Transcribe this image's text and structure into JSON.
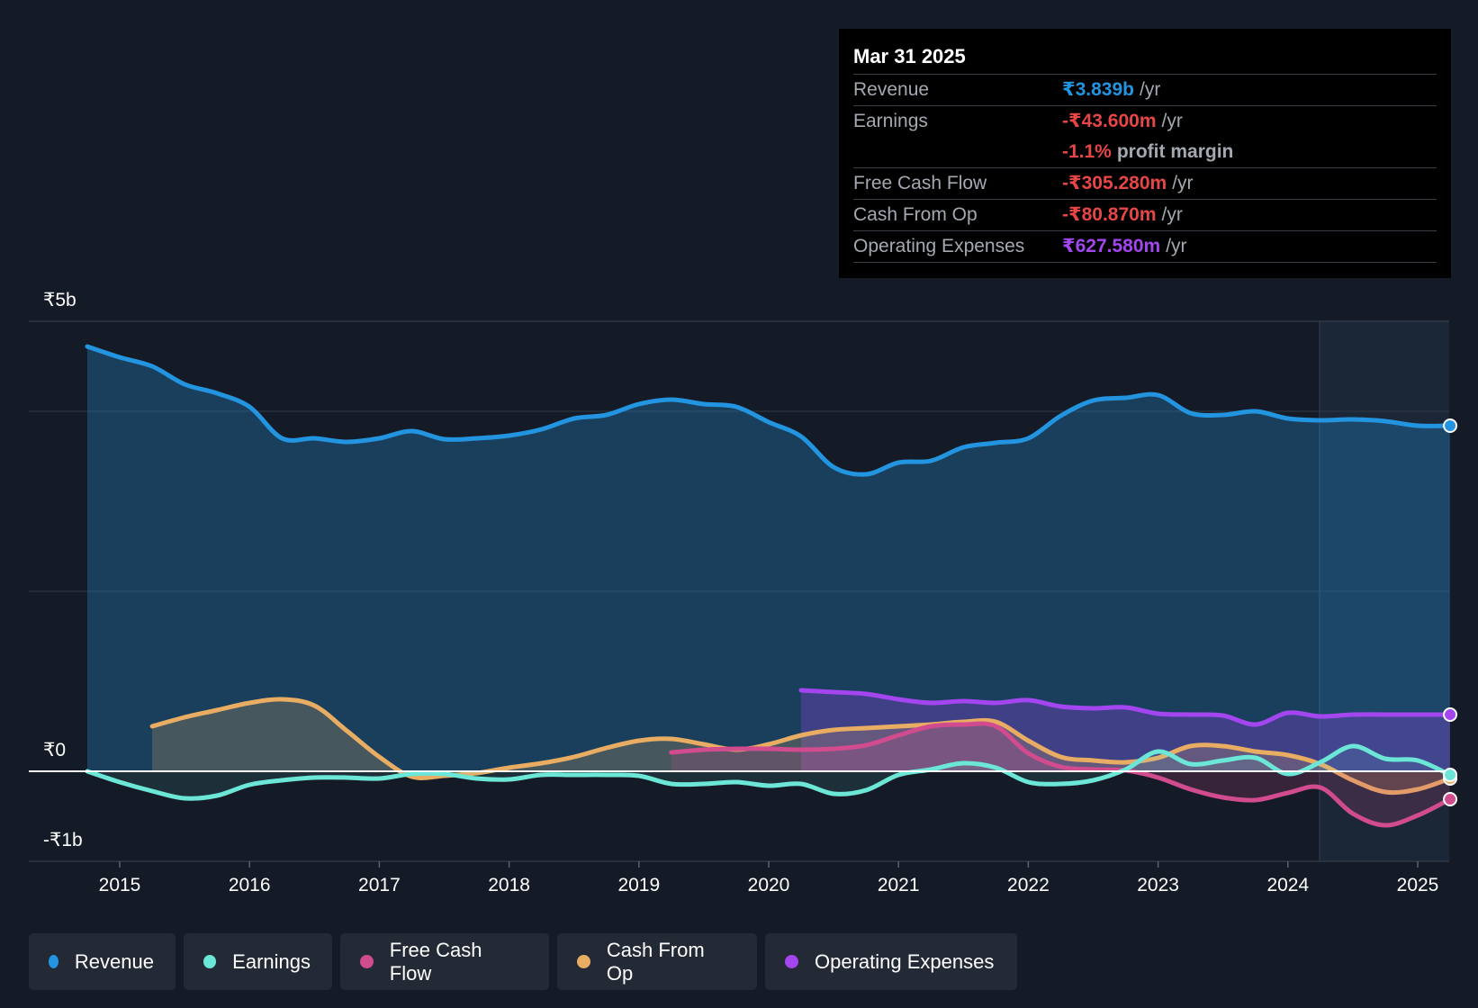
{
  "tooltip": {
    "date": "Mar 31 2025",
    "rows": [
      {
        "label": "Revenue",
        "value": "₹3.839b",
        "unit": "/yr",
        "color": "#2394df"
      },
      {
        "label": "Earnings",
        "value": "-₹43.600m",
        "unit": "/yr",
        "color": "#e64646"
      },
      {
        "label": "",
        "value": "-1.1%",
        "unit": "profit margin",
        "color": "#e64646"
      },
      {
        "label": "Free Cash Flow",
        "value": "-₹305.280m",
        "unit": "/yr",
        "color": "#e64646"
      },
      {
        "label": "Cash From Op",
        "value": "-₹80.870m",
        "unit": "/yr",
        "color": "#e64646"
      },
      {
        "label": "Operating Expenses",
        "value": "₹627.580m",
        "unit": "/yr",
        "color": "#a346f0"
      }
    ]
  },
  "legend": [
    {
      "label": "Revenue",
      "color": "#2394df"
    },
    {
      "label": "Earnings",
      "color": "#6ce6d6"
    },
    {
      "label": "Free Cash Flow",
      "color": "#d14b8f"
    },
    {
      "label": "Cash From Op",
      "color": "#e8ad62"
    },
    {
      "label": "Operating Expenses",
      "color": "#a346f0"
    }
  ],
  "chart_data": {
    "type": "area",
    "title": "",
    "xlabel": "",
    "ylabel": "",
    "y_tick_labels": [
      "₹5b",
      "₹0",
      "-₹1b"
    ],
    "x_tick_labels": [
      "2015",
      "2016",
      "2017",
      "2018",
      "2019",
      "2020",
      "2021",
      "2022",
      "2023",
      "2024",
      "2025"
    ],
    "ylim": [
      -1.0,
      5.0
    ],
    "xlim": [
      2014.27,
      2025.25
    ],
    "unit": "₹b",
    "grid": true,
    "legend_placement": "bottom",
    "series": [
      {
        "name": "Revenue",
        "color": "#2394df",
        "points": [
          [
            2014.75,
            4.72
          ],
          [
            2015.0,
            4.6
          ],
          [
            2015.25,
            4.5
          ],
          [
            2015.5,
            4.3
          ],
          [
            2015.75,
            4.2
          ],
          [
            2016.0,
            4.05
          ],
          [
            2016.25,
            3.7
          ],
          [
            2016.5,
            3.7
          ],
          [
            2016.75,
            3.66
          ],
          [
            2017.0,
            3.7
          ],
          [
            2017.25,
            3.78
          ],
          [
            2017.5,
            3.69
          ],
          [
            2017.75,
            3.7
          ],
          [
            2018.0,
            3.73
          ],
          [
            2018.25,
            3.8
          ],
          [
            2018.5,
            3.92
          ],
          [
            2018.75,
            3.96
          ],
          [
            2019.0,
            4.08
          ],
          [
            2019.25,
            4.13
          ],
          [
            2019.5,
            4.08
          ],
          [
            2019.75,
            4.05
          ],
          [
            2020.0,
            3.88
          ],
          [
            2020.25,
            3.72
          ],
          [
            2020.5,
            3.38
          ],
          [
            2020.75,
            3.3
          ],
          [
            2021.0,
            3.43
          ],
          [
            2021.25,
            3.45
          ],
          [
            2021.5,
            3.6
          ],
          [
            2021.75,
            3.65
          ],
          [
            2022.0,
            3.7
          ],
          [
            2022.25,
            3.95
          ],
          [
            2022.5,
            4.12
          ],
          [
            2022.75,
            4.15
          ],
          [
            2023.0,
            4.18
          ],
          [
            2023.25,
            3.98
          ],
          [
            2023.5,
            3.96
          ],
          [
            2023.75,
            4.0
          ],
          [
            2024.0,
            3.92
          ],
          [
            2024.25,
            3.9
          ],
          [
            2024.5,
            3.91
          ],
          [
            2024.75,
            3.89
          ],
          [
            2025.0,
            3.84
          ],
          [
            2025.25,
            3.84
          ]
        ]
      },
      {
        "name": "Earnings",
        "color": "#6ce6d6",
        "points": [
          [
            2014.75,
            0.0
          ],
          [
            2015.0,
            -0.12
          ],
          [
            2015.25,
            -0.22
          ],
          [
            2015.5,
            -0.3
          ],
          [
            2015.75,
            -0.27
          ],
          [
            2016.0,
            -0.15
          ],
          [
            2016.25,
            -0.1
          ],
          [
            2016.5,
            -0.07
          ],
          [
            2016.75,
            -0.07
          ],
          [
            2017.0,
            -0.08
          ],
          [
            2017.25,
            -0.03
          ],
          [
            2017.5,
            -0.03
          ],
          [
            2017.75,
            -0.08
          ],
          [
            2018.0,
            -0.09
          ],
          [
            2018.25,
            -0.04
          ],
          [
            2018.5,
            -0.04
          ],
          [
            2018.75,
            -0.04
          ],
          [
            2019.0,
            -0.05
          ],
          [
            2019.25,
            -0.14
          ],
          [
            2019.5,
            -0.14
          ],
          [
            2019.75,
            -0.12
          ],
          [
            2020.0,
            -0.16
          ],
          [
            2020.25,
            -0.14
          ],
          [
            2020.5,
            -0.25
          ],
          [
            2020.75,
            -0.21
          ],
          [
            2021.0,
            -0.04
          ],
          [
            2021.25,
            0.02
          ],
          [
            2021.5,
            0.09
          ],
          [
            2021.75,
            0.04
          ],
          [
            2022.0,
            -0.12
          ],
          [
            2022.25,
            -0.14
          ],
          [
            2022.5,
            -0.1
          ],
          [
            2022.75,
            0.02
          ],
          [
            2023.0,
            0.22
          ],
          [
            2023.25,
            0.08
          ],
          [
            2023.5,
            0.12
          ],
          [
            2023.75,
            0.15
          ],
          [
            2024.0,
            -0.03
          ],
          [
            2024.25,
            0.1
          ],
          [
            2024.5,
            0.28
          ],
          [
            2024.75,
            0.14
          ],
          [
            2025.0,
            0.12
          ],
          [
            2025.25,
            -0.04
          ]
        ]
      },
      {
        "name": "Free Cash Flow",
        "color": "#d14b8f",
        "points": [
          [
            2019.25,
            0.21
          ],
          [
            2019.5,
            0.24
          ],
          [
            2019.75,
            0.25
          ],
          [
            2020.0,
            0.25
          ],
          [
            2020.25,
            0.24
          ],
          [
            2020.5,
            0.25
          ],
          [
            2020.75,
            0.29
          ],
          [
            2021.0,
            0.4
          ],
          [
            2021.25,
            0.5
          ],
          [
            2021.5,
            0.52
          ],
          [
            2021.75,
            0.5
          ],
          [
            2022.0,
            0.2
          ],
          [
            2022.25,
            0.05
          ],
          [
            2022.5,
            0.02
          ],
          [
            2022.75,
            0.01
          ],
          [
            2023.0,
            -0.07
          ],
          [
            2023.25,
            -0.2
          ],
          [
            2023.5,
            -0.29
          ],
          [
            2023.75,
            -0.32
          ],
          [
            2024.0,
            -0.24
          ],
          [
            2024.25,
            -0.18
          ],
          [
            2024.5,
            -0.47
          ],
          [
            2024.75,
            -0.6
          ],
          [
            2025.0,
            -0.49
          ],
          [
            2025.25,
            -0.31
          ]
        ]
      },
      {
        "name": "Cash From Op",
        "color": "#e8ad62",
        "points": [
          [
            2015.25,
            0.5
          ],
          [
            2015.5,
            0.6
          ],
          [
            2015.75,
            0.68
          ],
          [
            2016.0,
            0.76
          ],
          [
            2016.25,
            0.8
          ],
          [
            2016.5,
            0.73
          ],
          [
            2016.75,
            0.45
          ],
          [
            2017.0,
            0.16
          ],
          [
            2017.25,
            -0.06
          ],
          [
            2017.5,
            -0.05
          ],
          [
            2017.75,
            -0.02
          ],
          [
            2018.0,
            0.04
          ],
          [
            2018.25,
            0.09
          ],
          [
            2018.5,
            0.16
          ],
          [
            2018.75,
            0.26
          ],
          [
            2019.0,
            0.34
          ],
          [
            2019.25,
            0.36
          ],
          [
            2019.5,
            0.3
          ],
          [
            2019.75,
            0.24
          ],
          [
            2020.0,
            0.3
          ],
          [
            2020.25,
            0.4
          ],
          [
            2020.5,
            0.46
          ],
          [
            2020.75,
            0.48
          ],
          [
            2021.0,
            0.5
          ],
          [
            2021.25,
            0.52
          ],
          [
            2021.5,
            0.55
          ],
          [
            2021.75,
            0.55
          ],
          [
            2022.0,
            0.34
          ],
          [
            2022.25,
            0.16
          ],
          [
            2022.5,
            0.12
          ],
          [
            2022.75,
            0.1
          ],
          [
            2023.0,
            0.15
          ],
          [
            2023.25,
            0.28
          ],
          [
            2023.5,
            0.28
          ],
          [
            2023.75,
            0.22
          ],
          [
            2024.0,
            0.18
          ],
          [
            2024.25,
            0.08
          ],
          [
            2024.5,
            -0.1
          ],
          [
            2024.75,
            -0.23
          ],
          [
            2025.0,
            -0.2
          ],
          [
            2025.25,
            -0.08
          ]
        ]
      },
      {
        "name": "Operating Expenses",
        "color": "#a346f0",
        "points": [
          [
            2020.25,
            0.9
          ],
          [
            2020.5,
            0.88
          ],
          [
            2020.75,
            0.86
          ],
          [
            2021.0,
            0.8
          ],
          [
            2021.25,
            0.76
          ],
          [
            2021.5,
            0.78
          ],
          [
            2021.75,
            0.76
          ],
          [
            2022.0,
            0.79
          ],
          [
            2022.25,
            0.72
          ],
          [
            2022.5,
            0.7
          ],
          [
            2022.75,
            0.71
          ],
          [
            2023.0,
            0.64
          ],
          [
            2023.25,
            0.63
          ],
          [
            2023.5,
            0.62
          ],
          [
            2023.75,
            0.52
          ],
          [
            2024.0,
            0.65
          ],
          [
            2024.25,
            0.61
          ],
          [
            2024.5,
            0.63
          ],
          [
            2024.75,
            0.63
          ],
          [
            2025.0,
            0.63
          ],
          [
            2025.25,
            0.63
          ]
        ]
      }
    ]
  }
}
